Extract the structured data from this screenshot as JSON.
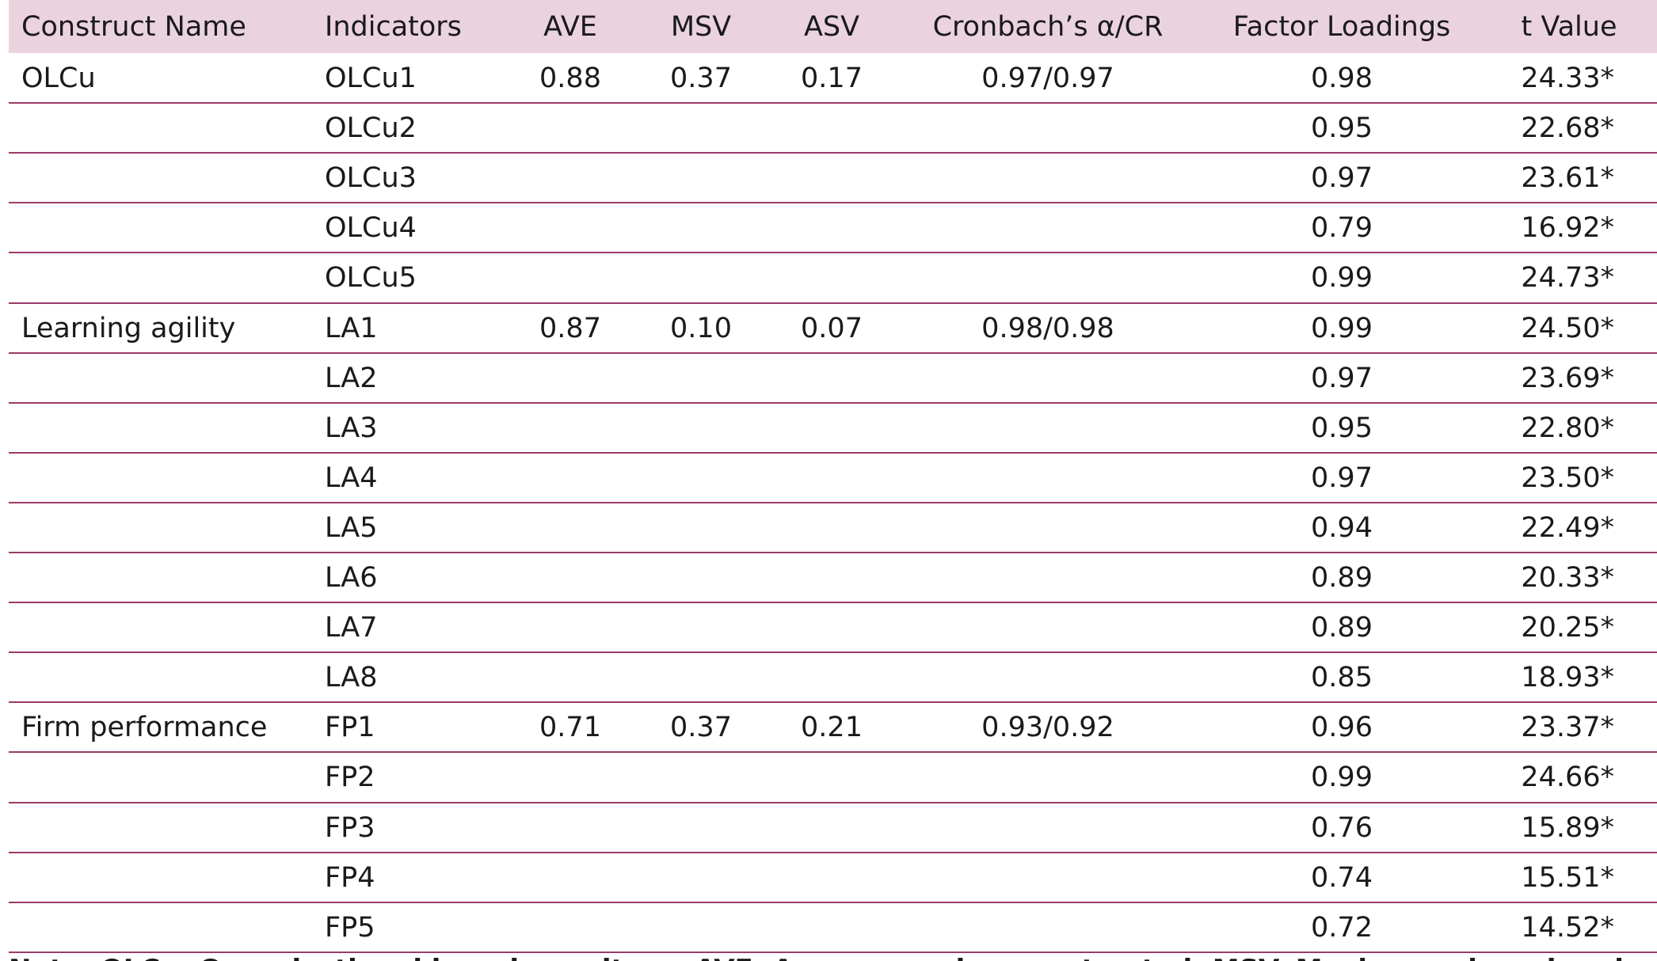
{
  "table": {
    "header": [
      "Construct Name",
      "Indicators",
      "AVE",
      "MSV",
      "ASV",
      "Cronbach’s α/CR",
      "Factor Loadings",
      "t Value"
    ],
    "rows": [
      {
        "construct": "OLCu",
        "indicator": "OLCu1",
        "ave": "0.88",
        "msv": "0.37",
        "asv": "0.17",
        "cr": "0.97/0.97",
        "loading": "0.98",
        "t": "24.33*"
      },
      {
        "indicator": "OLCu2",
        "loading": "0.95",
        "t": "22.68*"
      },
      {
        "indicator": "OLCu3",
        "loading": "0.97",
        "t": "23.61*"
      },
      {
        "indicator": "OLCu4",
        "loading": "0.79",
        "t": "16.92*"
      },
      {
        "indicator": "OLCu5",
        "loading": "0.99",
        "t": "24.73*"
      },
      {
        "construct": "Learning agility",
        "indicator": "LA1",
        "ave": "0.87",
        "msv": "0.10",
        "asv": "0.07",
        "cr": "0.98/0.98",
        "loading": "0.99",
        "t": "24.50*"
      },
      {
        "indicator": "LA2",
        "loading": "0.97",
        "t": "23.69*"
      },
      {
        "indicator": "LA3",
        "loading": "0.95",
        "t": "22.80*"
      },
      {
        "indicator": "LA4",
        "loading": "0.97",
        "t": "23.50*"
      },
      {
        "indicator": "LA5",
        "loading": "0.94",
        "t": "22.49*"
      },
      {
        "indicator": "LA6",
        "loading": "0.89",
        "t": "20.33*"
      },
      {
        "indicator": "LA7",
        "loading": "0.89",
        "t": "20.25*"
      },
      {
        "indicator": "LA8",
        "loading": "0.85",
        "t": "18.93*"
      },
      {
        "construct": "Firm performance",
        "indicator": "FP1",
        "ave": "0.71",
        "msv": "0.37",
        "asv": "0.21",
        "cr": "0.93/0.92",
        "loading": "0.96",
        "t": "23.37*"
      },
      {
        "indicator": "FP2",
        "loading": "0.99",
        "t": "24.66*"
      },
      {
        "indicator": "FP3",
        "loading": "0.76",
        "t": "15.89*"
      },
      {
        "indicator": "FP4",
        "loading": "0.74",
        "t": "15.51*"
      },
      {
        "indicator": "FP5",
        "loading": "0.72",
        "t": "14.52*"
      }
    ],
    "note": "Note. OLCu, Organizational learning culture; AVE, Average variance extracted; MSV, Maximum shared variance; ASV, Average shared variance"
  }
}
